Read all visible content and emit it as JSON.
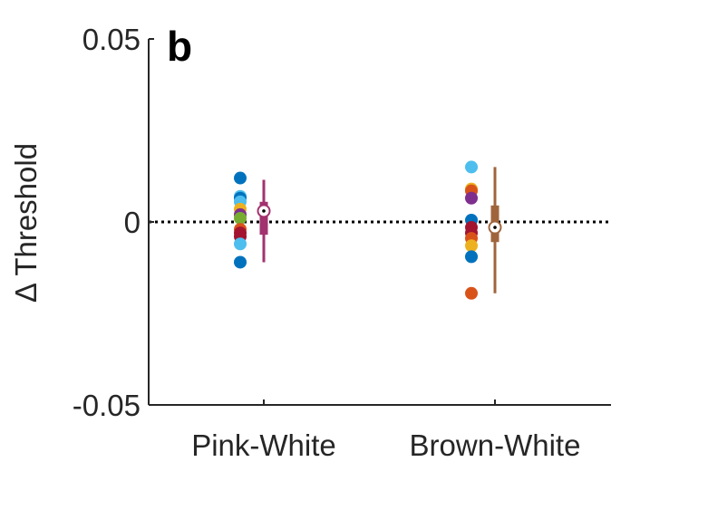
{
  "chart_data": {
    "type": "scatter",
    "panel_label": "b",
    "ylabel": "Δ Threshold",
    "ylim": [
      -0.05,
      0.05
    ],
    "yticks": [
      {
        "value": -0.05,
        "label": "-0.05"
      },
      {
        "value": 0,
        "label": "0"
      },
      {
        "value": 0.05,
        "label": "0.05"
      }
    ],
    "reference_line": {
      "y": 0,
      "style": "dotted",
      "color": "#000000"
    },
    "categories": [
      "Pink-White",
      "Brown-White"
    ],
    "groups": [
      {
        "category": "Pink-White",
        "summary_color": "#A2336F",
        "points": [
          {
            "y": 0.012,
            "color": "#0072BD"
          },
          {
            "y": 0.007,
            "color": "#4DBEEE"
          },
          {
            "y": 0.0065,
            "color": "#0072BD"
          },
          {
            "y": 0.0055,
            "color": "#4DBEEE"
          },
          {
            "y": 0.0035,
            "color": "#EDB120"
          },
          {
            "y": 0.002,
            "color": "#7E2F8E"
          },
          {
            "y": 0.001,
            "color": "#77AC30"
          },
          {
            "y": -0.002,
            "color": "#D95319"
          },
          {
            "y": -0.003,
            "color": "#A2142F"
          },
          {
            "y": -0.004,
            "color": "#A2142F"
          },
          {
            "y": -0.006,
            "color": "#4DBEEE"
          },
          {
            "y": -0.011,
            "color": "#0072BD"
          }
        ],
        "median": 0.003,
        "box": [
          -0.0035,
          0.0055
        ],
        "whisker": [
          -0.011,
          0.0115
        ]
      },
      {
        "category": "Brown-White",
        "summary_color": "#A0643C",
        "points": [
          {
            "y": 0.015,
            "color": "#4DBEEE"
          },
          {
            "y": 0.009,
            "color": "#EDB120"
          },
          {
            "y": 0.0085,
            "color": "#D95319"
          },
          {
            "y": 0.0065,
            "color": "#7E2F8E"
          },
          {
            "y": 0.0005,
            "color": "#0072BD"
          },
          {
            "y": -0.0015,
            "color": "#A2142F"
          },
          {
            "y": -0.003,
            "color": "#A2142F"
          },
          {
            "y": -0.0045,
            "color": "#D95319"
          },
          {
            "y": -0.0065,
            "color": "#EDB120"
          },
          {
            "y": -0.0095,
            "color": "#0072BD"
          },
          {
            "y": -0.0195,
            "color": "#D95319"
          }
        ],
        "median": -0.0015,
        "box": [
          -0.0055,
          0.0045
        ],
        "whisker": [
          -0.0195,
          0.015
        ]
      }
    ]
  }
}
